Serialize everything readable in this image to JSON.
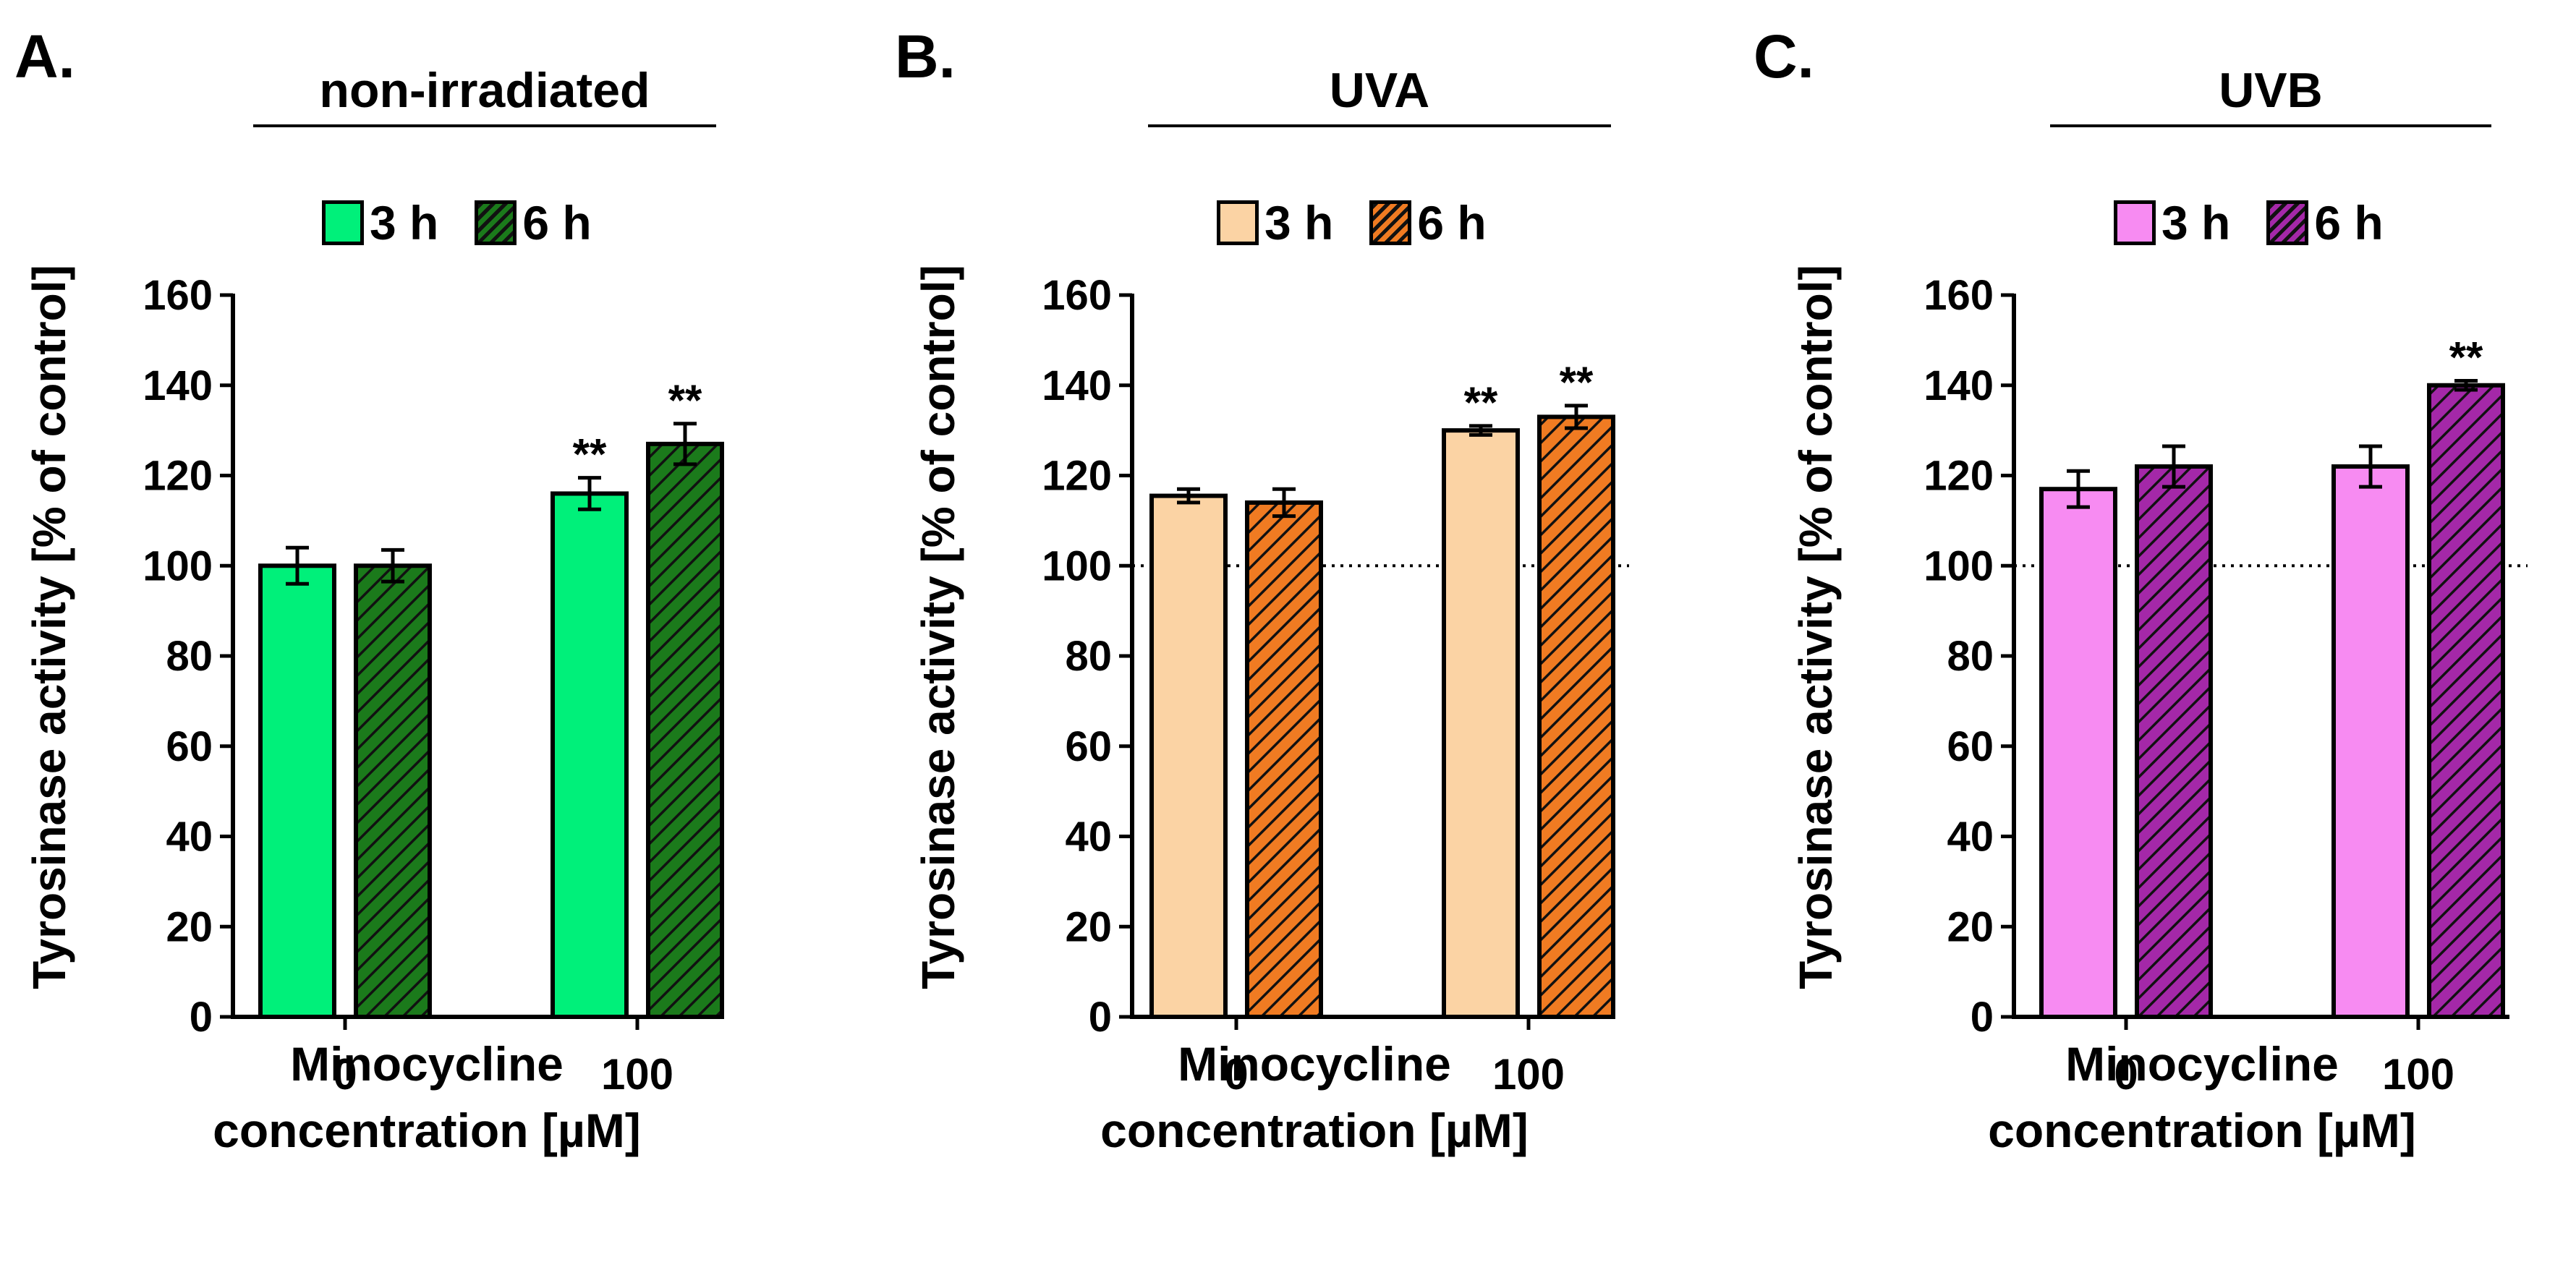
{
  "chart_data": [
    {
      "type": "bar",
      "panel_letter": "A.",
      "title": "non-irradiated",
      "ylabel": "Tyrosinase activity [% of control]",
      "xlabel_line1": "Minocycline",
      "xlabel_line2": "concentration [µM]",
      "ylim": [
        0,
        160
      ],
      "yticks": [
        0,
        20,
        40,
        60,
        80,
        100,
        120,
        140,
        160
      ],
      "categories": [
        "0",
        "100"
      ],
      "reference_line": null,
      "series": [
        {
          "name": "3 h",
          "hatched": false,
          "values": [
            100,
            116
          ],
          "errors": [
            4,
            3.5
          ],
          "significance": [
            "",
            "**"
          ]
        },
        {
          "name": "6 h",
          "hatched": true,
          "values": [
            100,
            127
          ],
          "errors": [
            3.5,
            4.5
          ],
          "significance": [
            "",
            "**"
          ]
        }
      ],
      "colors": {
        "3 h": "#00F07A",
        "6 h": "#1B7A1B"
      }
    },
    {
      "type": "bar",
      "panel_letter": "B.",
      "title": "UVA",
      "ylabel": "Tyrosinase activity [% of control]",
      "xlabel_line1": "Minocycline",
      "xlabel_line2": "concentration [µM]",
      "ylim": [
        0,
        160
      ],
      "yticks": [
        0,
        20,
        40,
        60,
        80,
        100,
        120,
        140,
        160
      ],
      "categories": [
        "0",
        "100"
      ],
      "reference_line": 100,
      "series": [
        {
          "name": "3 h",
          "hatched": false,
          "values": [
            115.5,
            130
          ],
          "errors": [
            1.5,
            1
          ],
          "significance": [
            "",
            "**"
          ]
        },
        {
          "name": "6 h",
          "hatched": true,
          "values": [
            114,
            133
          ],
          "errors": [
            3,
            2.5
          ],
          "significance": [
            "",
            "**"
          ]
        }
      ],
      "colors": {
        "3 h": "#FBD3A4",
        "6 h": "#F07B22"
      }
    },
    {
      "type": "bar",
      "panel_letter": "C.",
      "title": "UVB",
      "ylabel": "Tyrosinase activity [% of control]",
      "xlabel_line1": "Minocycline",
      "xlabel_line2": "concentration [µM]",
      "ylim": [
        0,
        160
      ],
      "yticks": [
        0,
        20,
        40,
        60,
        80,
        100,
        120,
        140,
        160
      ],
      "categories": [
        "0",
        "100"
      ],
      "reference_line": 100,
      "series": [
        {
          "name": "3 h",
          "hatched": false,
          "values": [
            117,
            122
          ],
          "errors": [
            4,
            4.5
          ],
          "significance": [
            "",
            ""
          ]
        },
        {
          "name": "6 h",
          "hatched": true,
          "values": [
            122,
            140
          ],
          "errors": [
            4.5,
            1
          ],
          "significance": [
            "",
            "**"
          ]
        }
      ],
      "colors": {
        "3 h": "#F78BF2",
        "6 h": "#A428A8"
      }
    }
  ]
}
